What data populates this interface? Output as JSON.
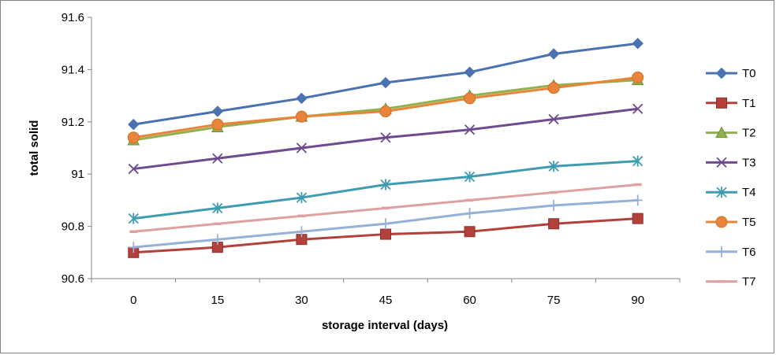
{
  "chart_data": {
    "type": "line",
    "title": "",
    "xlabel": "storage interval (days)",
    "ylabel": "total  solid",
    "categories": [
      "0",
      "15",
      "30",
      "45",
      "60",
      "75",
      "90"
    ],
    "ylim": [
      90.6,
      91.6
    ],
    "yticks": [
      "90.6",
      "90.8",
      "91",
      "91.2",
      "91.4",
      "91.6"
    ],
    "grid": false,
    "legend_position": "right",
    "series": [
      {
        "name": "T0",
        "color": "#4a72b0",
        "marker": "diamond",
        "values": [
          91.19,
          91.24,
          91.29,
          91.35,
          91.39,
          91.46,
          91.5
        ]
      },
      {
        "name": "T1",
        "color": "#b4403c",
        "marker": "square",
        "values": [
          90.7,
          90.72,
          90.75,
          90.77,
          90.78,
          90.81,
          90.83
        ]
      },
      {
        "name": "T2",
        "color": "#8fb24f",
        "marker": "triangle",
        "values": [
          91.13,
          91.18,
          91.22,
          91.25,
          91.3,
          91.34,
          91.36
        ]
      },
      {
        "name": "T3",
        "color": "#6e4a8e",
        "marker": "x",
        "values": [
          91.02,
          91.06,
          91.1,
          91.14,
          91.17,
          91.21,
          91.25
        ]
      },
      {
        "name": "T4",
        "color": "#3e9bb0",
        "marker": "star",
        "values": [
          90.83,
          90.87,
          90.91,
          90.96,
          90.99,
          91.03,
          91.05
        ]
      },
      {
        "name": "T5",
        "color": "#e8853a",
        "marker": "circle",
        "values": [
          91.14,
          91.19,
          91.22,
          91.24,
          91.29,
          91.33,
          91.37
        ]
      },
      {
        "name": "T6",
        "color": "#96b0d6",
        "marker": "plus",
        "values": [
          90.72,
          90.75,
          90.78,
          90.81,
          90.85,
          90.88,
          90.9
        ]
      },
      {
        "name": "T7",
        "color": "#dea0a0",
        "marker": "dash",
        "values": [
          90.78,
          90.81,
          90.84,
          90.87,
          90.9,
          90.93,
          90.96
        ]
      }
    ]
  }
}
